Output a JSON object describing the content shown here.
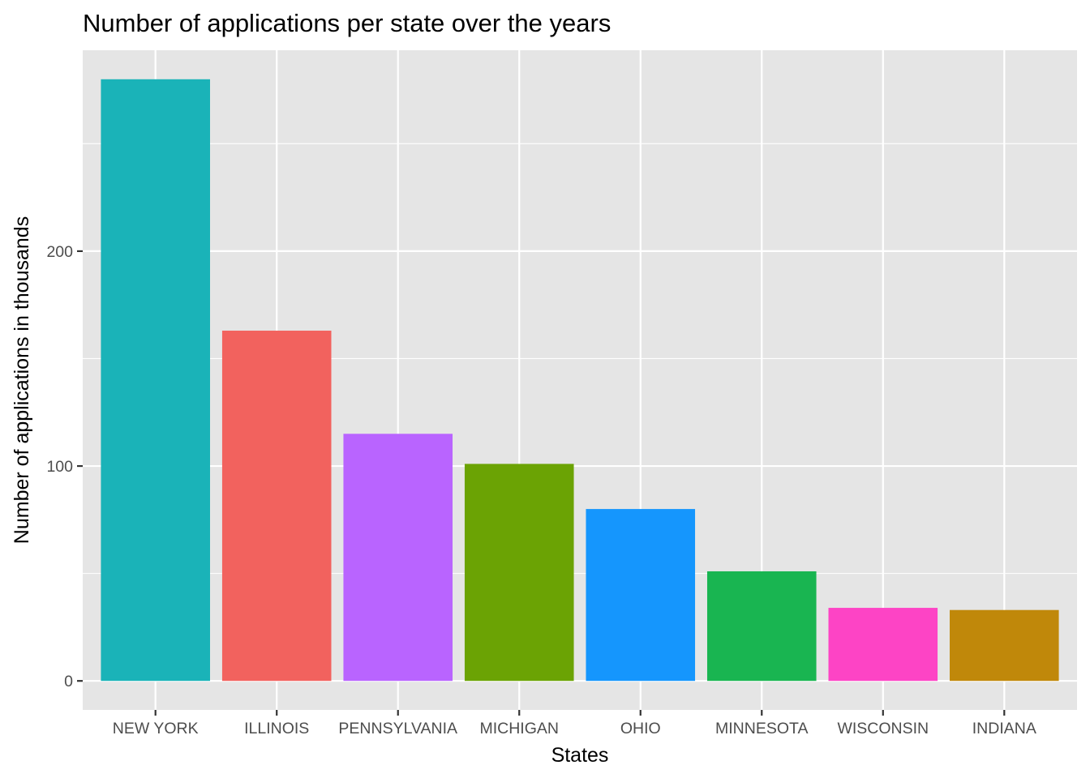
{
  "chart_data": {
    "type": "bar",
    "title": "Number of applications per state over the years",
    "xlabel": "States",
    "ylabel": "Number of applications in thousands",
    "categories": [
      "NEW YORK",
      "ILLINOIS",
      "PENNSYLVANIA",
      "MICHIGAN",
      "OHIO",
      "MINNESOTA",
      "WISCONSIN",
      "INDIANA"
    ],
    "values": [
      280,
      163,
      115,
      101,
      80,
      51,
      34,
      33
    ],
    "colors": [
      "#1ab3b8",
      "#f2625e",
      "#b964ff",
      "#6ba304",
      "#1596fd",
      "#19b551",
      "#fd44c5",
      "#c0880a"
    ],
    "ylim": [
      -13.5,
      293.5
    ],
    "yticks": [
      0,
      100,
      200
    ],
    "yminor": [
      50,
      150,
      250
    ],
    "grid": true,
    "legend": "none",
    "panel_background": "#e5e5e5",
    "grid_color": "#ffffff"
  }
}
